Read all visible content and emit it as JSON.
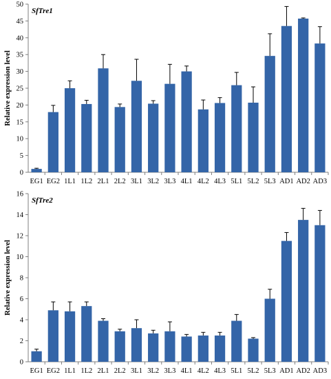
{
  "colors": {
    "bar": "#3465A8",
    "axis": "#7f7f7f",
    "error_bar": "#000000"
  },
  "chart_data": [
    {
      "type": "bar",
      "title": "SfTre1",
      "xlabel": "",
      "ylabel": "Relative expression level",
      "ylim": [
        0,
        50
      ],
      "yticks": [
        0,
        5,
        10,
        15,
        20,
        25,
        30,
        35,
        40,
        45,
        50
      ],
      "grid": false,
      "categories": [
        "EG1",
        "EG2",
        "1L1",
        "1L2",
        "2L1",
        "2L2",
        "3L1",
        "3L2",
        "3L3",
        "4L1",
        "4L2",
        "4L3",
        "5L1",
        "5L2",
        "5L3",
        "AD1",
        "AD2",
        "AD3"
      ],
      "values": [
        1.0,
        17.9,
        25.0,
        20.3,
        30.9,
        19.4,
        27.2,
        20.4,
        26.3,
        30.0,
        18.7,
        20.6,
        25.9,
        20.7,
        34.6,
        43.5,
        45.7,
        38.3
      ],
      "errors": [
        0.2,
        2.0,
        2.2,
        1.1,
        4.1,
        0.9,
        6.4,
        0.9,
        5.8,
        1.6,
        2.8,
        1.6,
        3.8,
        4.7,
        6.6,
        5.8,
        0.2,
        5.0
      ]
    },
    {
      "type": "bar",
      "title": "SfTre2",
      "xlabel": "",
      "ylabel": "Relative expression level",
      "ylim": [
        0,
        16
      ],
      "yticks": [
        0,
        2,
        4,
        6,
        8,
        10,
        12,
        14,
        16
      ],
      "grid": false,
      "categories": [
        "EG1",
        "EG2",
        "1L1",
        "1L2",
        "2L1",
        "2L2",
        "3L1",
        "3L2",
        "3L3",
        "4L1",
        "4L2",
        "4L3",
        "5L1",
        "5L2",
        "5L3",
        "AD1",
        "AD2",
        "AD3"
      ],
      "values": [
        1.0,
        4.9,
        4.8,
        5.3,
        3.9,
        2.9,
        3.2,
        2.7,
        2.9,
        2.4,
        2.5,
        2.5,
        3.9,
        2.2,
        6.0,
        11.5,
        13.5,
        13.0
      ],
      "errors": [
        0.2,
        0.8,
        0.9,
        0.4,
        0.2,
        0.2,
        0.8,
        0.3,
        0.9,
        0.2,
        0.3,
        0.3,
        0.6,
        0.1,
        0.9,
        0.8,
        1.1,
        1.4
      ]
    }
  ]
}
